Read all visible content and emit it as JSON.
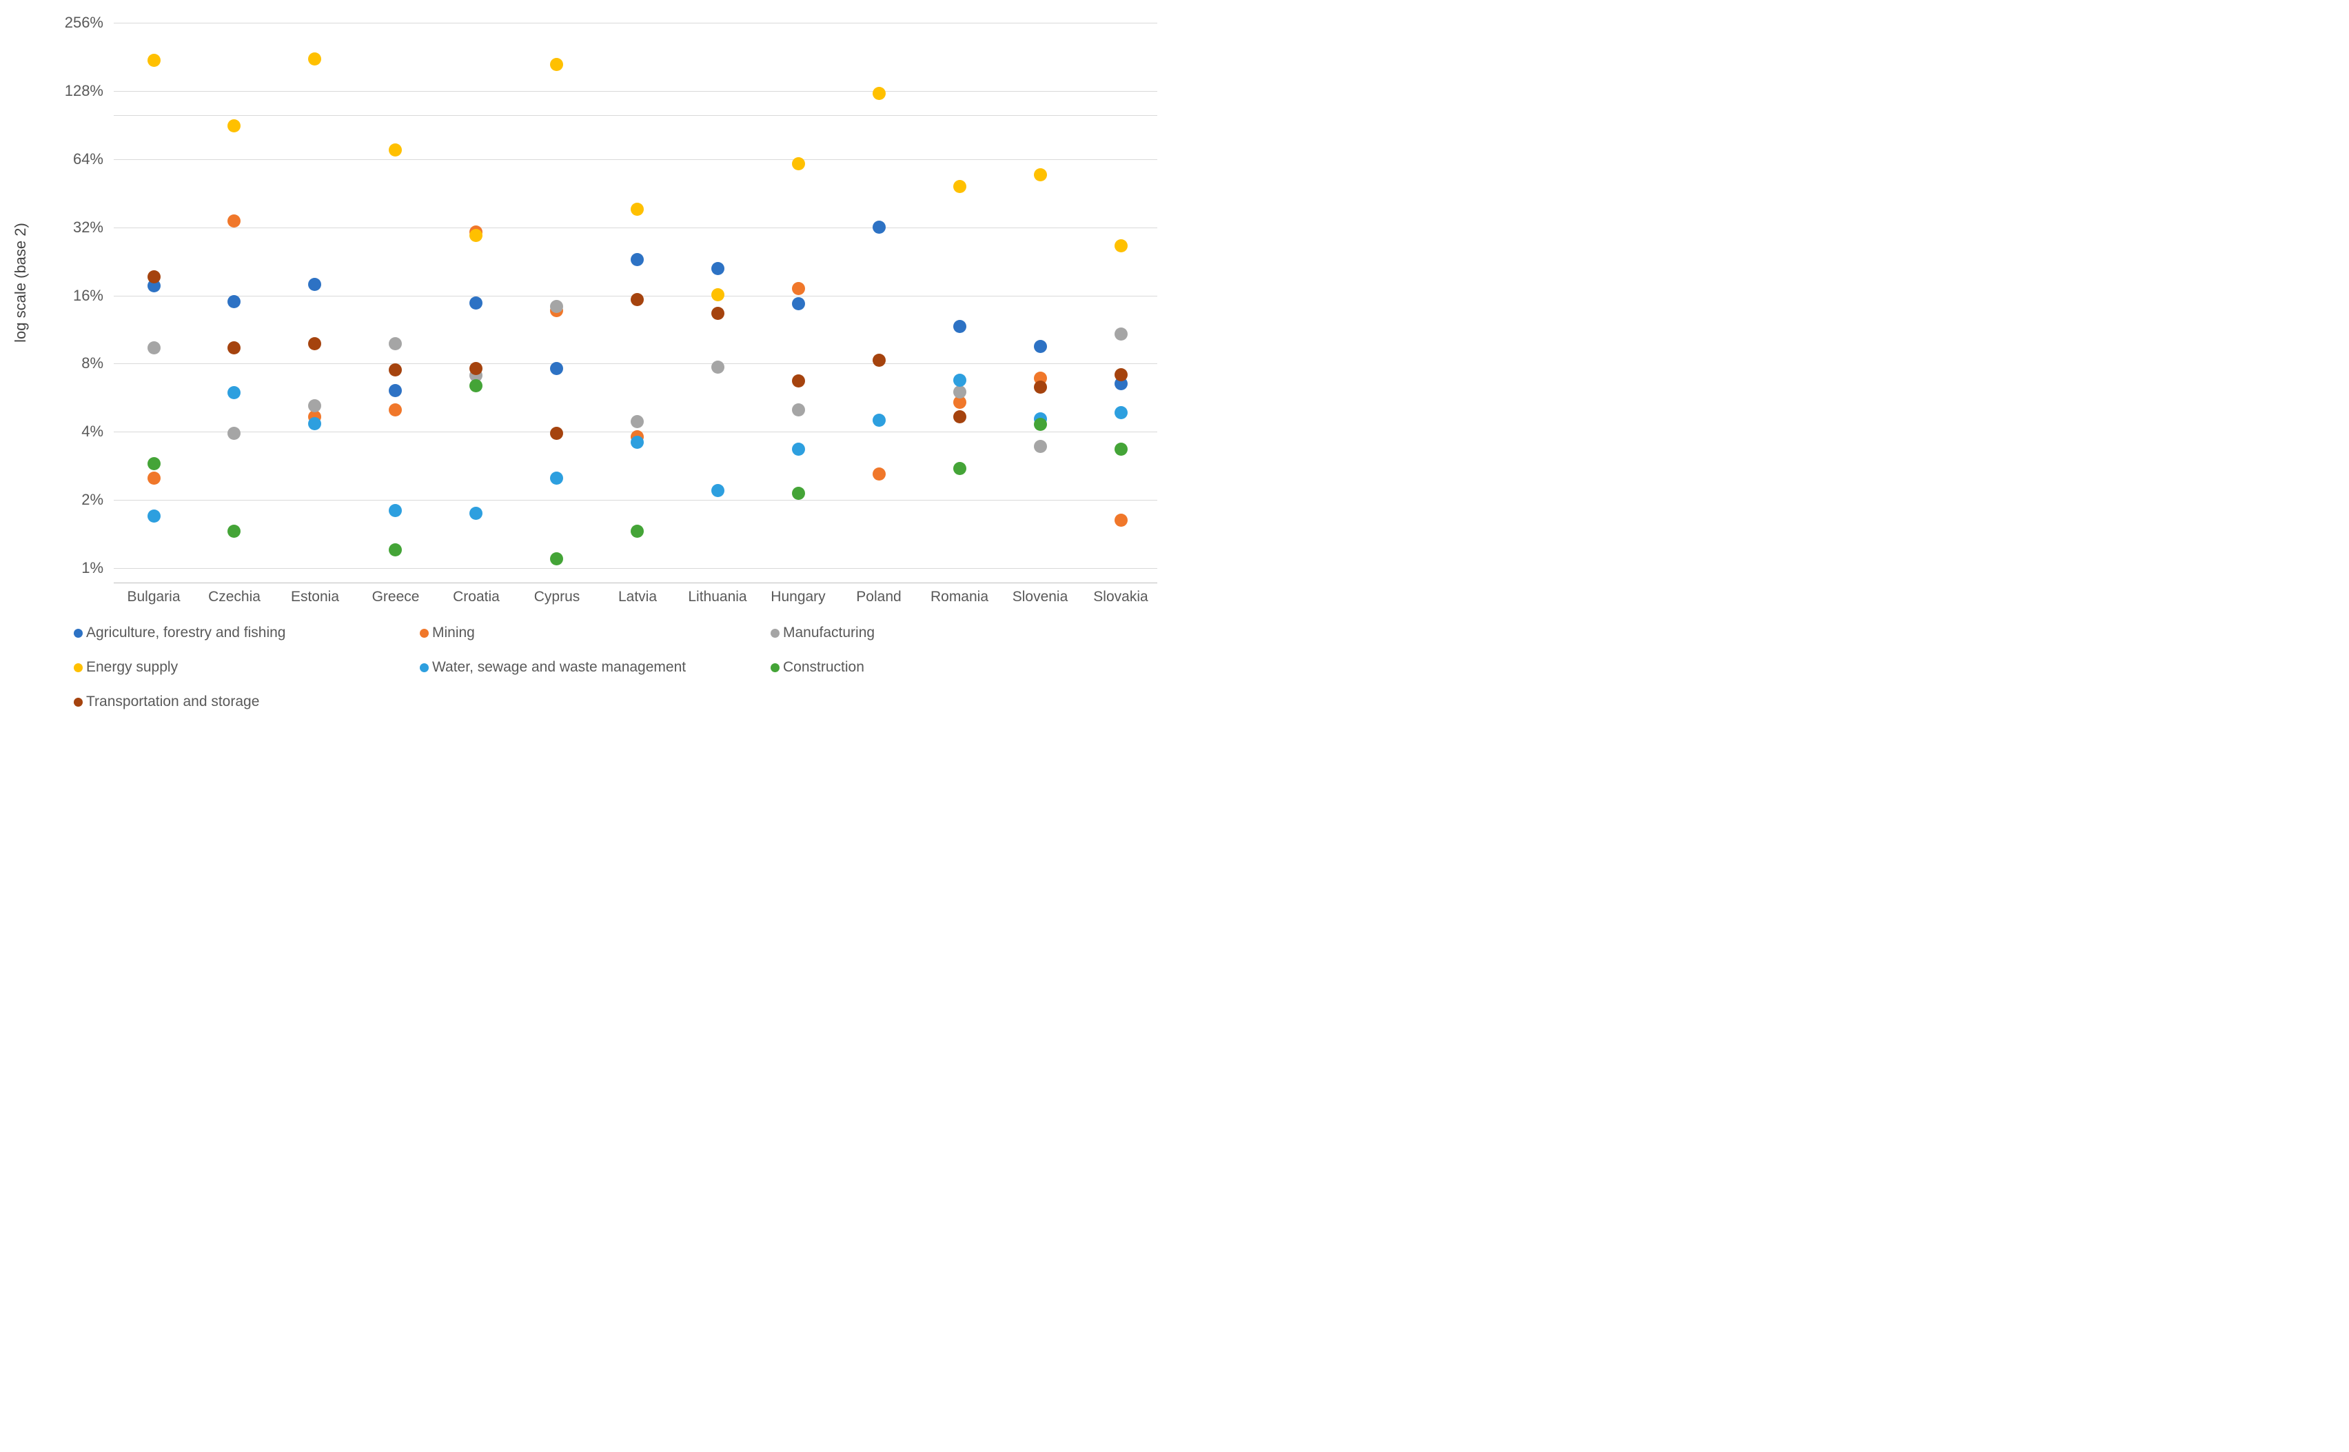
{
  "chart_data": {
    "type": "scatter",
    "title": "",
    "xlabel": "",
    "ylabel": "log scale (base 2)",
    "y_axis": {
      "scale": "log base 2",
      "tick_values": [
        256,
        128,
        64,
        32,
        16,
        8,
        4,
        2,
        1
      ],
      "tick_labels": [
        "256%",
        "128%",
        "64%",
        "32%",
        "16%",
        "8%",
        "4%",
        "2%",
        "1%"
      ],
      "extra_gridline_value": 100,
      "ymin_percent": 0.86,
      "ymax_percent": 256,
      "grid": true
    },
    "legend_position": "bottom",
    "categories": [
      "Bulgaria",
      "Czechia",
      "Estonia",
      "Greece",
      "Croatia",
      "Cyprus",
      "Latvia",
      "Lithuania",
      "Hungary",
      "Poland",
      "Romania",
      "Slovenia",
      "Slovakia"
    ],
    "series": [
      {
        "name": "Agriculture, forestry and fishing",
        "color": "#2D72C4",
        "values": [
          17.6,
          15.0,
          17.9,
          6.1,
          14.8,
          7.6,
          23.0,
          21.0,
          14.7,
          32.1,
          11.7,
          9.5,
          6.5
        ]
      },
      {
        "name": "Mining",
        "color": "#F0772A",
        "values": [
          2.5,
          34.0,
          4.65,
          5.0,
          30.6,
          13.7,
          3.8,
          null,
          17.2,
          2.6,
          5.4,
          6.9,
          1.63
        ]
      },
      {
        "name": "Manufacturing",
        "color": "#A5A5A5",
        "values": [
          9.4,
          3.95,
          5.2,
          9.8,
          7.1,
          14.3,
          4.45,
          7.7,
          5.0,
          null,
          6.0,
          3.45,
          10.8
        ]
      },
      {
        "name": "Energy supply",
        "color": "#FFC000",
        "values": [
          175,
          90,
          177,
          70,
          29.4,
          168,
          38.5,
          16.1,
          61,
          125,
          48.5,
          54.5,
          26.5
        ]
      },
      {
        "name": "Water, sewage and waste management",
        "color": "#2D9FDF",
        "values": [
          1.7,
          5.95,
          4.35,
          1.8,
          1.75,
          2.5,
          3.6,
          2.2,
          3.35,
          4.5,
          6.75,
          4.55,
          4.85
        ]
      },
      {
        "name": "Construction",
        "color": "#44A437",
        "values": [
          2.9,
          1.45,
          null,
          1.2,
          6.4,
          1.1,
          1.46,
          null,
          2.14,
          null,
          2.75,
          4.3,
          3.35
        ]
      },
      {
        "name": "Transportation and storage",
        "color": "#A5430E",
        "values": [
          19.4,
          9.4,
          9.8,
          7.5,
          7.6,
          3.95,
          15.3,
          13.3,
          6.7,
          8.3,
          4.65,
          6.3,
          7.15
        ]
      }
    ]
  }
}
